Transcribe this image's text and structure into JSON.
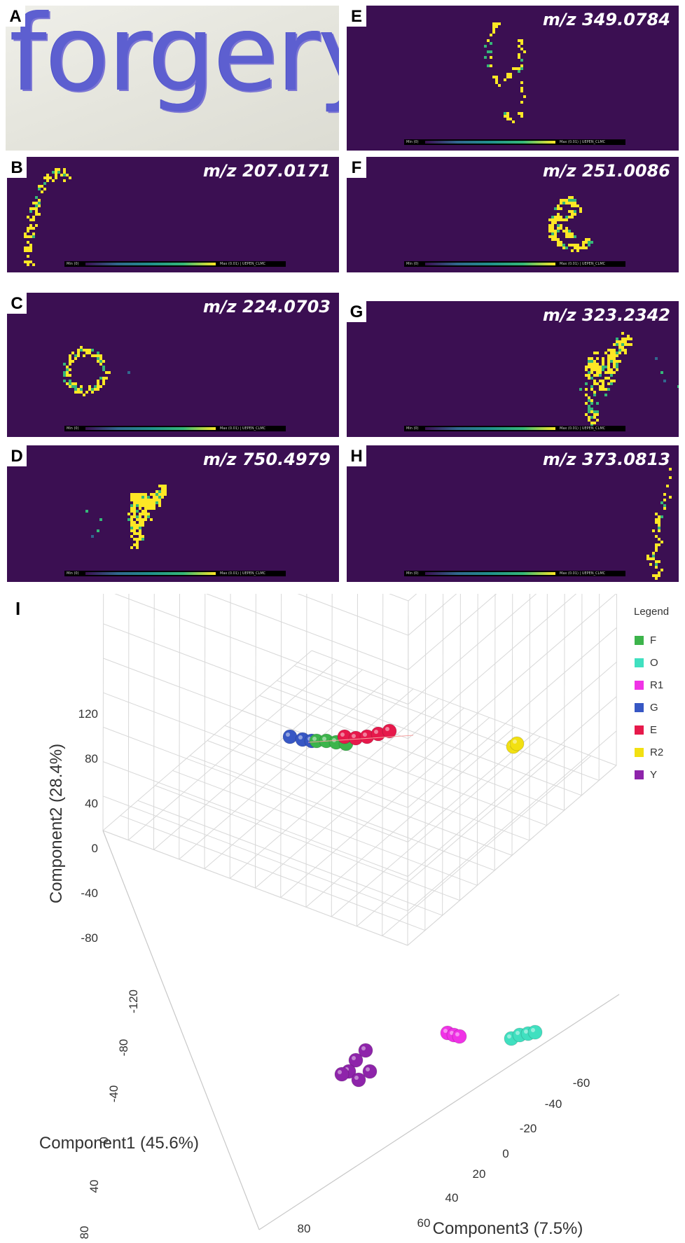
{
  "panel_a": {
    "letter": "A",
    "handwriting": "forgery"
  },
  "msi_panels": [
    {
      "letter": "B",
      "mz": "m/z 207.0171",
      "colorbar_min": "Min (0)",
      "colorbar_max": "Max (0.01) | UEPEN_CLMC"
    },
    {
      "letter": "C",
      "mz": "m/z 224.0703",
      "colorbar_min": "Min (0)",
      "colorbar_max": "Max (0.01) | UEPEN_CLMC"
    },
    {
      "letter": "D",
      "mz": "m/z 750.4979",
      "colorbar_min": "Min (0)",
      "colorbar_max": "Max (0.01) | UEPEN_CLMC"
    },
    {
      "letter": "E",
      "mz": "m/z 349.0784",
      "colorbar_min": "Min (0)",
      "colorbar_max": "Max (0.01) | UEPEN_CLMC"
    },
    {
      "letter": "F",
      "mz": "m/z 251.0086",
      "colorbar_min": "Min (0)",
      "colorbar_max": "Max (0.01) | UEPEN_CLMC"
    },
    {
      "letter": "G",
      "mz": "m/z 323.2342",
      "colorbar_min": "Min (0)",
      "colorbar_max": "Max (0.01) | UEPEN_CLMC"
    },
    {
      "letter": "H",
      "mz": "m/z 373.0813",
      "colorbar_min": "Min (0)",
      "colorbar_max": "Max (0.01) | UEPEN_CLMC"
    }
  ],
  "colors": {
    "msi_background": "#3b0f52",
    "msi_signal": "#fde725",
    "msi_mid": "#35b779"
  },
  "chart_data": {
    "type": "scatter",
    "panel_letter": "I",
    "projection": "3d",
    "xlabel": "Component1 (45.6%)",
    "ylabel": "Component2 (28.4%)",
    "zlabel": "Component3 (7.5%)",
    "component2_ticks": [
      "120",
      "80",
      "40",
      "0",
      "-40",
      "-80"
    ],
    "component1_ticks": [
      "-120",
      "-80",
      "-40",
      "0",
      "40",
      "80"
    ],
    "component3_ticks": [
      "-60",
      "-40",
      "-20",
      "0",
      "20",
      "40",
      "60",
      "80"
    ],
    "legend_title": "Legend",
    "legend_position": "top-right",
    "grid": true,
    "series": [
      {
        "name": "F",
        "color": "#3cb44b"
      },
      {
        "name": "O",
        "color": "#40e0c0"
      },
      {
        "name": "R1",
        "color": "#f032e6"
      },
      {
        "name": "G",
        "color": "#3757c4"
      },
      {
        "name": "E",
        "color": "#e6194b"
      },
      {
        "name": "R2",
        "color": "#f2e012"
      },
      {
        "name": "Y",
        "color": "#8e24aa"
      }
    ]
  }
}
